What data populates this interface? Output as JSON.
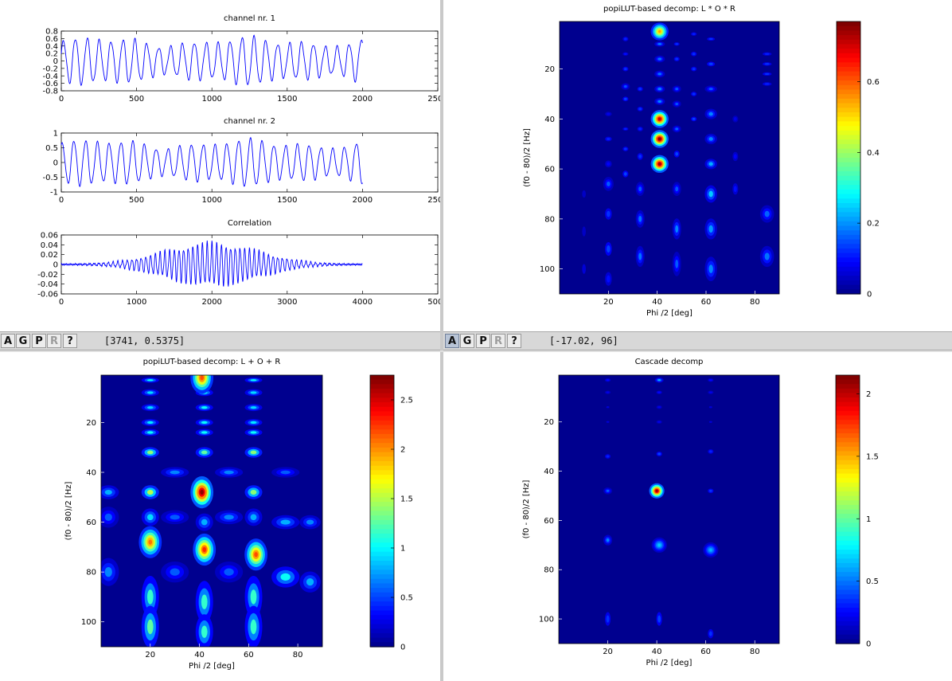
{
  "windows": {
    "signals": {
      "plots": [
        {
          "title": "channel nr. 1",
          "xticks": [
            "0",
            "500",
            "1000",
            "1500",
            "2000",
            "2500"
          ],
          "yticks": [
            "0.8",
            "0.6",
            "0.4",
            "0.2",
            "0",
            "-0.2",
            "-0.4",
            "-0.6",
            "-0.8"
          ]
        },
        {
          "title": "channel nr. 2",
          "xticks": [
            "0",
            "500",
            "1000",
            "1500",
            "2000",
            "2500"
          ],
          "yticks": [
            "1",
            "0.5",
            "0",
            "-0.5",
            "-1"
          ]
        },
        {
          "title": "Correlation",
          "xticks": [
            "0",
            "1000",
            "2000",
            "3000",
            "4000",
            "5000"
          ],
          "yticks": [
            "0.06",
            "0.04",
            "0.02",
            "0",
            "-0.02",
            "-0.04",
            "-0.06"
          ]
        }
      ],
      "toolbar": {
        "buttons": [
          "A",
          "G",
          "P",
          "R",
          "?"
        ],
        "coord_readout": "[3741, 0.5375]"
      }
    },
    "lor_product": {
      "title": "popiLUT-based decomp: L * O * R",
      "xlabel": "Phi /2 [deg]",
      "ylabel": "(f0 - 80)/2 [Hz]",
      "xticks": [
        "20",
        "40",
        "60",
        "80"
      ],
      "yticks": [
        "20",
        "40",
        "60",
        "80",
        "100"
      ],
      "colorbar_ticks": [
        "0.6",
        "0.4",
        "0.2",
        "0"
      ],
      "toolbar": {
        "buttons": [
          "A",
          "G",
          "P",
          "R",
          "?"
        ],
        "coord_readout": "[-17.02, 96]"
      }
    },
    "lor_sum": {
      "title": "popiLUT-based decomp: L + O + R",
      "xlabel": "Phi /2 [deg]",
      "ylabel": "(f0 - 80)/2 [Hz]",
      "xticks": [
        "20",
        "40",
        "60",
        "80"
      ],
      "yticks": [
        "20",
        "40",
        "60",
        "80",
        "100"
      ],
      "colorbar_ticks": [
        "2.5",
        "2",
        "1.5",
        "1",
        "0.5",
        "0"
      ]
    },
    "cascade": {
      "title": "Cascade decomp",
      "xlabel": "Phi /2 [deg]",
      "ylabel": "(f0 - 80)/2 [Hz]",
      "xticks": [
        "20",
        "40",
        "60",
        "80"
      ],
      "yticks": [
        "20",
        "40",
        "60",
        "80",
        "100"
      ],
      "colorbar_ticks": [
        "2",
        "1.5",
        "1",
        "0.5",
        "0"
      ]
    }
  },
  "colors": {
    "line": "#0000ff",
    "map_background": "#00008f",
    "toolbar": "#d8d8d8"
  },
  "chart_data": [
    {
      "type": "line",
      "title": "channel nr. 1",
      "xlim": [
        0,
        2500
      ],
      "ylim": [
        -0.8,
        0.8
      ],
      "series": [
        {
          "note": "quasi-periodic oscillation, ~25 cycles over 2000 samples, amplitude ~0.55",
          "x_range": [
            0,
            2000
          ]
        }
      ]
    },
    {
      "type": "line",
      "title": "channel nr. 2",
      "xlim": [
        0,
        2500
      ],
      "ylim": [
        -1,
        1
      ],
      "series": [
        {
          "note": "quasi-periodic oscillation, ~25 cycles over 2000 samples, amplitude ~0.65",
          "x_range": [
            0,
            2000
          ]
        }
      ]
    },
    {
      "type": "line",
      "title": "Correlation",
      "xlim": [
        0,
        5000
      ],
      "ylim": [
        -0.06,
        0.06
      ],
      "series": [
        {
          "note": "oscillating cross-correlation with envelope peaking near 2000, max ~0.05",
          "x_range": [
            0,
            4000
          ]
        }
      ]
    },
    {
      "type": "heatmap",
      "title": "popiLUT-based decomp: L * O * R",
      "xlabel": "Phi /2 [deg]",
      "ylabel": "(f0 - 80)/2 [Hz]",
      "xlim": [
        0,
        90
      ],
      "ylim": [
        110,
        1
      ],
      "colorbar": [
        0,
        0.77
      ],
      "peaks": [
        {
          "x": 41,
          "y": 40,
          "v": 0.72
        },
        {
          "x": 41,
          "y": 48,
          "v": 0.77
        },
        {
          "x": 41,
          "y": 58,
          "v": 0.75
        },
        {
          "x": 41,
          "y": 5,
          "v": 0.55
        }
      ]
    },
    {
      "type": "heatmap",
      "title": "popiLUT-based decomp: L + O + R",
      "xlabel": "Phi /2 [deg]",
      "ylabel": "(f0 - 80)/2 [Hz]",
      "xlim": [
        0,
        90
      ],
      "ylim": [
        110,
        1
      ],
      "colorbar": [
        0,
        2.75
      ],
      "peaks": [
        {
          "x": 41,
          "y": 48,
          "v": 2.7
        },
        {
          "x": 41,
          "y": 2,
          "v": 2.2
        },
        {
          "x": 20,
          "y": 68,
          "v": 2.1
        },
        {
          "x": 42,
          "y": 71,
          "v": 2.3
        },
        {
          "x": 63,
          "y": 73,
          "v": 2.2
        }
      ]
    },
    {
      "type": "heatmap",
      "title": "Cascade decomp",
      "xlabel": "Phi /2 [deg]",
      "ylabel": "(f0 - 80)/2 [Hz]",
      "xlim": [
        0,
        90
      ],
      "ylim": [
        110,
        1
      ],
      "colorbar": [
        0,
        2.15
      ],
      "peaks": [
        {
          "x": 40,
          "y": 48,
          "v": 2.1
        },
        {
          "x": 41,
          "y": 70,
          "v": 0.7
        },
        {
          "x": 62,
          "y": 72,
          "v": 0.65
        }
      ]
    }
  ]
}
